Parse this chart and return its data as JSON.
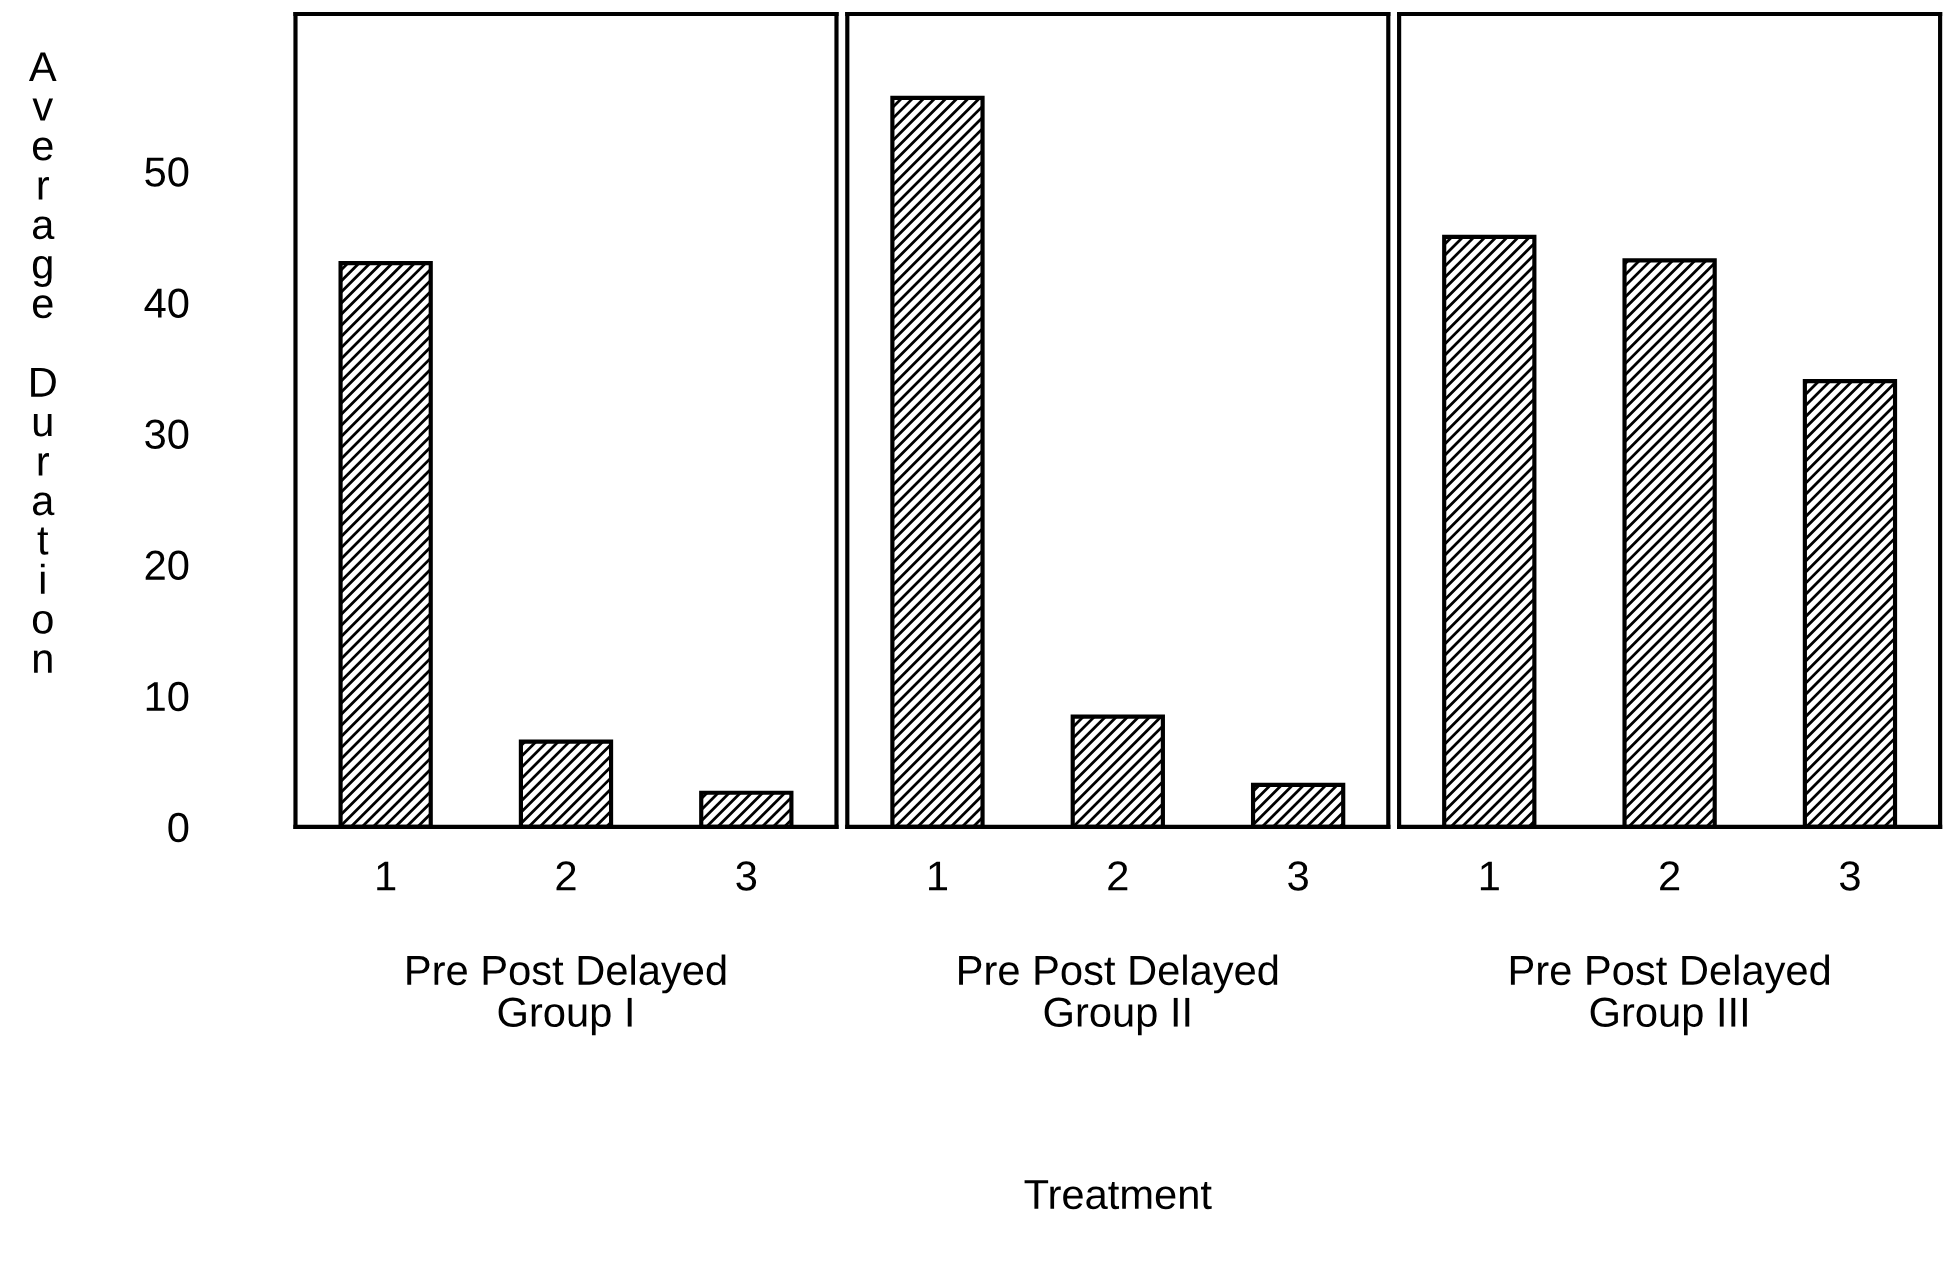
{
  "chart_data": [
    {
      "type": "bar",
      "categories": [
        "1",
        "2",
        "3"
      ],
      "values": [
        43,
        6.5,
        2.6
      ],
      "color": "#000000",
      "xlabel": "Pre Post Delayed\nGroup I",
      "ylabel": "Average Duration",
      "ylim": [
        0,
        62
      ],
      "yticks": [
        0,
        10,
        20,
        30,
        40,
        50
      ],
      "grid": false
    },
    {
      "type": "bar",
      "categories": [
        "1",
        "2",
        "3"
      ],
      "values": [
        55.6,
        8.4,
        3.2
      ],
      "color": "#000000",
      "xlabel": "Pre Post Delayed\nGroup II",
      "ylim": [
        0,
        62
      ],
      "tick_labels": "x",
      "grid": false,
      "annotations": [
        "Treatment"
      ]
    },
    {
      "type": "bar",
      "categories": [
        "1",
        "2",
        "3"
      ],
      "values": [
        45,
        43.2,
        34
      ],
      "color": "#000000",
      "xlabel": "Pre Post Delayed\nGroup III",
      "ylim": [
        0,
        62
      ],
      "tick_labels": "x",
      "grid": false
    }
  ]
}
